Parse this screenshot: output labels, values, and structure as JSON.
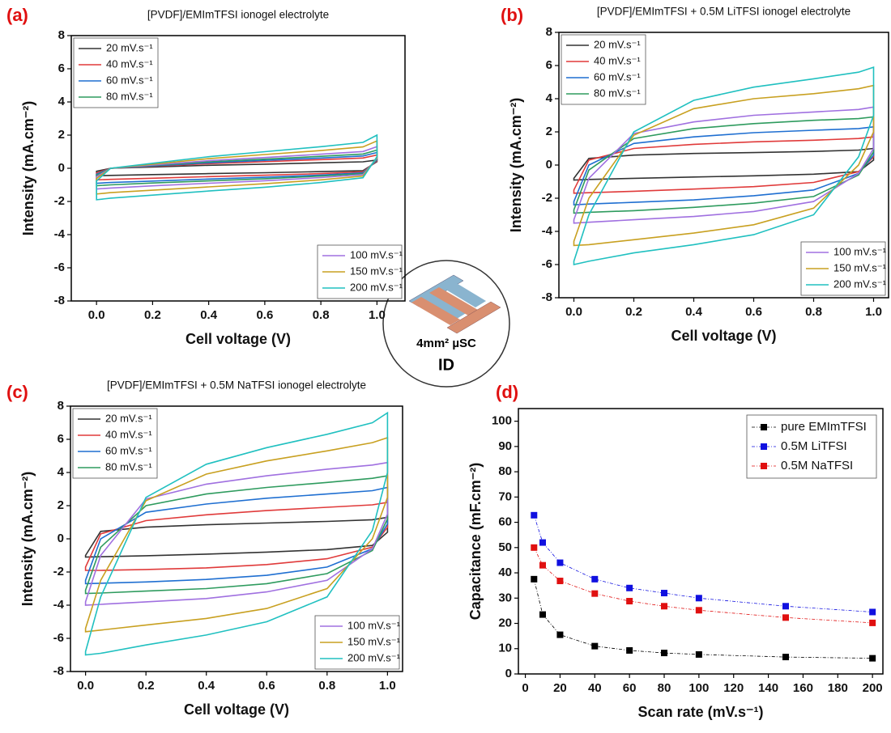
{
  "chart_data": [
    {
      "type": "cv",
      "panel_label": "(a)",
      "title": "[PVDF]/EMImTFSI ionogel electrolyte",
      "xlabel": "Cell voltage (V)",
      "ylabel": "Intensity (mA.cm⁻²)",
      "xlim": [
        -0.09,
        1.1
      ],
      "ylim": [
        -8,
        8
      ],
      "xticks": [
        {
          "value": 0,
          "label": "0.0"
        },
        0.2,
        0.4,
        0.6,
        0.8,
        {
          "value": 1,
          "label": "1.0"
        }
      ],
      "yticks": [
        -8,
        -6,
        -4,
        -2,
        0,
        2,
        4,
        6,
        8
      ],
      "x": [
        0,
        0.05,
        0.2,
        0.4,
        0.6,
        0.8,
        0.95,
        1,
        1,
        0.95,
        0.8,
        0.6,
        0.4,
        0.2,
        0.05,
        0
      ],
      "series": [
        {
          "name": "20 mV.s⁻¹",
          "color": "#333333",
          "values": [
            -0.18,
            0,
            0.08,
            0.18,
            0.25,
            0.33,
            0.39,
            0.5,
            0.4,
            -0.14,
            -0.2,
            -0.27,
            -0.32,
            -0.38,
            -0.43,
            -0.45
          ]
        },
        {
          "name": "40 mV.s⁻¹",
          "color": "#e03a3a",
          "values": [
            -0.28,
            0,
            0.12,
            0.28,
            0.4,
            0.52,
            0.62,
            0.8,
            0.45,
            -0.21,
            -0.32,
            -0.42,
            -0.5,
            -0.6,
            -0.67,
            -0.7
          ]
        },
        {
          "name": "60 mV.s⁻¹",
          "color": "#1f6fd1",
          "values": [
            -0.36,
            0,
            0.14,
            0.33,
            0.48,
            0.62,
            0.74,
            0.95,
            0.5,
            -0.27,
            -0.41,
            -0.54,
            -0.65,
            -0.77,
            -0.86,
            -0.9
          ]
        },
        {
          "name": "80 mV.s⁻¹",
          "color": "#2e9b5e",
          "values": [
            -0.42,
            0,
            0.17,
            0.39,
            0.55,
            0.72,
            0.86,
            1.1,
            0.55,
            -0.32,
            -0.47,
            -0.63,
            -0.76,
            -0.89,
            -1.0,
            -1.05
          ]
        },
        {
          "name": "100 mV.s⁻¹",
          "color": "#a070e0",
          "values": [
            -0.5,
            0,
            0.2,
            0.46,
            0.65,
            0.85,
            1.01,
            1.3,
            0.6,
            -0.38,
            -0.56,
            -0.75,
            -0.9,
            -1.06,
            -1.19,
            -1.25
          ]
        },
        {
          "name": "150 mV.s⁻¹",
          "color": "#c8a020",
          "values": [
            -0.62,
            0,
            0.25,
            0.58,
            0.83,
            1.07,
            1.29,
            1.65,
            0.65,
            -0.47,
            -0.7,
            -0.93,
            -1.12,
            -1.32,
            -1.47,
            -1.55
          ]
        },
        {
          "name": "200 mV.s⁻¹",
          "color": "#20c0c0",
          "values": [
            -0.76,
            0,
            0.3,
            0.7,
            1.0,
            1.3,
            1.56,
            2.0,
            0.7,
            -0.57,
            -0.86,
            -1.14,
            -1.37,
            -1.62,
            -1.8,
            -1.9
          ]
        }
      ]
    },
    {
      "type": "cv",
      "panel_label": "(b)",
      "title": "[PVDF]/EMImTFSI + 0.5M LiTFSI ionogel electrolyte",
      "xlabel": "Cell voltage (V)",
      "ylabel": "Intensity (mA.cm⁻²)",
      "xlim": [
        -0.05,
        1.05
      ],
      "ylim": [
        -8,
        8
      ],
      "xticks": [
        {
          "value": 0,
          "label": "0.0"
        },
        0.2,
        0.4,
        0.6,
        0.8,
        {
          "value": 1,
          "label": "1.0"
        }
      ],
      "yticks": [
        -8,
        -6,
        -4,
        -2,
        0,
        2,
        4,
        6,
        8
      ],
      "x": [
        0,
        0.05,
        0.2,
        0.4,
        0.6,
        0.8,
        0.95,
        1,
        1,
        0.95,
        0.8,
        0.6,
        0.4,
        0.2,
        0.05,
        0
      ],
      "series": [
        {
          "name": "20 mV.s⁻¹",
          "color": "#333333",
          "values": [
            -0.8,
            0.4,
            0.6,
            0.7,
            0.75,
            0.82,
            0.9,
            1.0,
            0.3,
            -0.4,
            -0.55,
            -0.65,
            -0.72,
            -0.8,
            -0.87,
            -0.9
          ]
        },
        {
          "name": "40 mV.s⁻¹",
          "color": "#e03a3a",
          "values": [
            -1.5,
            0.3,
            1.0,
            1.25,
            1.4,
            1.5,
            1.6,
            1.7,
            0.5,
            -0.4,
            -1.05,
            -1.3,
            -1.45,
            -1.58,
            -1.67,
            -1.7
          ]
        },
        {
          "name": "60 mV.s⁻¹",
          "color": "#1f6fd1",
          "values": [
            -2.2,
            0.0,
            1.3,
            1.7,
            1.95,
            2.1,
            2.2,
            2.3,
            0.6,
            -0.5,
            -1.5,
            -1.85,
            -2.1,
            -2.25,
            -2.35,
            -2.4
          ]
        },
        {
          "name": "80 mV.s⁻¹",
          "color": "#2e9b5e",
          "values": [
            -2.7,
            -0.3,
            1.6,
            2.2,
            2.5,
            2.7,
            2.8,
            2.9,
            0.8,
            -0.6,
            -1.9,
            -2.3,
            -2.55,
            -2.75,
            -2.85,
            -2.9
          ]
        },
        {
          "name": "100 mV.s⁻¹",
          "color": "#a070e0",
          "values": [
            -3.3,
            -0.8,
            1.9,
            2.6,
            3.0,
            3.2,
            3.35,
            3.5,
            1.0,
            -0.5,
            -2.2,
            -2.8,
            -3.1,
            -3.3,
            -3.45,
            -3.5
          ]
        },
        {
          "name": "150 mV.s⁻¹",
          "color": "#c8a020",
          "values": [
            -4.6,
            -2.0,
            1.8,
            3.4,
            4.0,
            4.3,
            4.6,
            4.8,
            2.0,
            0.0,
            -2.6,
            -3.6,
            -4.1,
            -4.5,
            -4.8,
            -4.85
          ]
        },
        {
          "name": "200 mV.s⁻¹",
          "color": "#20c0c0",
          "values": [
            -5.8,
            -3.0,
            2.0,
            3.9,
            4.7,
            5.2,
            5.6,
            5.9,
            3.0,
            0.5,
            -3.0,
            -4.2,
            -4.8,
            -5.3,
            -5.8,
            -6.0
          ]
        }
      ]
    },
    {
      "type": "cv",
      "panel_label": "(c)",
      "title": "[PVDF]/EMImTFSI + 0.5M NaTFSI ionogel electrolyte",
      "xlabel": "Cell voltage (V)",
      "ylabel": "Intensity (mA.cm⁻²)",
      "xlim": [
        -0.05,
        1.05
      ],
      "ylim": [
        -8,
        8
      ],
      "xticks": [
        {
          "value": 0,
          "label": "0.0"
        },
        0.2,
        0.4,
        0.6,
        0.8,
        {
          "value": 1,
          "label": "1.0"
        }
      ],
      "yticks": [
        -8,
        -6,
        -4,
        -2,
        0,
        2,
        4,
        6,
        8
      ],
      "x": [
        0,
        0.05,
        0.2,
        0.4,
        0.6,
        0.8,
        0.95,
        1,
        1,
        0.95,
        0.8,
        0.6,
        0.4,
        0.2,
        0.05,
        0
      ],
      "series": [
        {
          "name": "20 mV.s⁻¹",
          "color": "#333333",
          "values": [
            -1.0,
            0.45,
            0.7,
            0.85,
            0.95,
            1.05,
            1.15,
            1.3,
            0.4,
            -0.4,
            -0.65,
            -0.8,
            -0.92,
            -1.02,
            -1.08,
            -1.1
          ]
        },
        {
          "name": "40 mV.s⁻¹",
          "color": "#e03a3a",
          "values": [
            -1.7,
            0.3,
            1.1,
            1.45,
            1.7,
            1.9,
            2.05,
            2.2,
            0.7,
            -0.5,
            -1.2,
            -1.55,
            -1.75,
            -1.85,
            -1.9,
            -1.9
          ]
        },
        {
          "name": "60 mV.s⁻¹",
          "color": "#1f6fd1",
          "values": [
            -2.5,
            0.0,
            1.6,
            2.1,
            2.45,
            2.7,
            2.9,
            3.1,
            0.9,
            -0.6,
            -1.7,
            -2.2,
            -2.45,
            -2.6,
            -2.68,
            -2.7
          ]
        },
        {
          "name": "80 mV.s⁻¹",
          "color": "#2e9b5e",
          "values": [
            -3.1,
            -0.5,
            2.0,
            2.7,
            3.1,
            3.4,
            3.65,
            3.8,
            1.2,
            -0.7,
            -2.1,
            -2.7,
            -3.0,
            -3.15,
            -3.27,
            -3.3
          ]
        },
        {
          "name": "100 mV.s⁻¹",
          "color": "#a070e0",
          "values": [
            -3.8,
            -1.0,
            2.4,
            3.3,
            3.8,
            4.2,
            4.45,
            4.6,
            1.5,
            -0.6,
            -2.5,
            -3.2,
            -3.6,
            -3.8,
            -3.95,
            -4.0
          ]
        },
        {
          "name": "150 mV.s⁻¹",
          "color": "#c8a020",
          "values": [
            -5.4,
            -2.5,
            2.3,
            3.9,
            4.7,
            5.3,
            5.8,
            6.1,
            2.5,
            0.0,
            -3.0,
            -4.2,
            -4.8,
            -5.2,
            -5.5,
            -5.6
          ]
        },
        {
          "name": "200 mV.s⁻¹",
          "color": "#20c0c0",
          "values": [
            -6.8,
            -3.5,
            2.5,
            4.5,
            5.5,
            6.3,
            7.0,
            7.6,
            4.0,
            0.5,
            -3.5,
            -5.0,
            -5.8,
            -6.4,
            -6.9,
            -7.0
          ]
        }
      ]
    },
    {
      "type": "line",
      "panel_label": "(d)",
      "marker": "square",
      "xlabel": "Scan rate (mV.s⁻¹)",
      "ylabel": "Capacitance (mF.cm⁻²)",
      "xlim": [
        -4,
        206
      ],
      "ylim": [
        0,
        105
      ],
      "xticks": [
        0,
        20,
        40,
        60,
        80,
        100,
        120,
        140,
        160,
        180,
        200
      ],
      "yticks": [
        0,
        10,
        20,
        30,
        40,
        50,
        60,
        70,
        80,
        90,
        100
      ],
      "legend": "upper right",
      "x": [
        5,
        10,
        20,
        40,
        60,
        80,
        100,
        150,
        200
      ],
      "series": [
        {
          "name": "pure EMImTFSI",
          "color": "#000000",
          "values": [
            37.5,
            23.5,
            15.5,
            11,
            9.3,
            8.3,
            7.7,
            6.7,
            6.2
          ]
        },
        {
          "name": "0.5M LiTFSI",
          "color": "#1010e0",
          "values": [
            62.8,
            52,
            44,
            37.5,
            34,
            32,
            30,
            26.8,
            24.5
          ]
        },
        {
          "name": "0.5M NaTFSI",
          "color": "#e01010",
          "values": [
            50,
            43,
            36.8,
            31.8,
            28.8,
            26.8,
            25.2,
            22.3,
            20.2
          ]
        }
      ]
    }
  ],
  "inset": {
    "label": "4mm² µSC",
    "id": "ID"
  }
}
